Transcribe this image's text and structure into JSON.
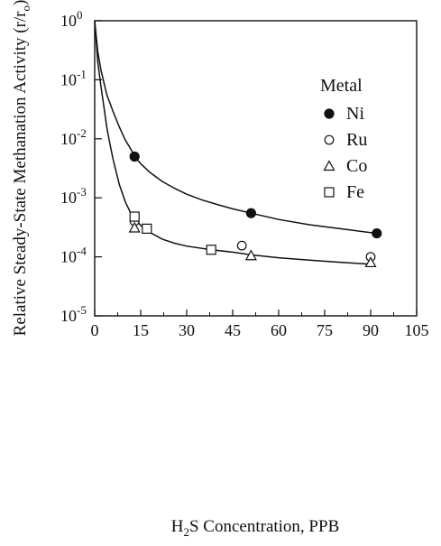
{
  "chart_data": {
    "type": "scatter",
    "title": "",
    "xlabel": "H2S Concentration, PPB",
    "xlabel_parts": {
      "pre": "H",
      "sub": "2",
      "post": "S Concentration, PPB"
    },
    "ylabel": "Relative Steady-State Methanation Activity (r/ro)",
    "ylabel_parts": {
      "pre": "Relative Steady-State Methanation Activity (r/r",
      "sub": "o",
      "post": ")"
    },
    "xlim": [
      0,
      105
    ],
    "ylim": [
      1e-05,
      1
    ],
    "yscale": "log",
    "xticks": [
      "0",
      "15",
      "30",
      "45",
      "60",
      "75",
      "90",
      "105"
    ],
    "xtick_values": [
      0,
      15,
      30,
      45,
      60,
      75,
      90,
      105
    ],
    "yticks": [
      {
        "base": "10",
        "exp": "0",
        "value": 1
      },
      {
        "base": "10",
        "exp": "-1",
        "value": 0.1
      },
      {
        "base": "10",
        "exp": "-2",
        "value": 0.01
      },
      {
        "base": "10",
        "exp": "-3",
        "value": 0.001
      },
      {
        "base": "10",
        "exp": "-4",
        "value": 0.0001
      },
      {
        "base": "10",
        "exp": "-5",
        "value": 1e-05
      }
    ],
    "grid": false,
    "legend": {
      "title": "Metal",
      "placement": "top-right"
    },
    "series": [
      {
        "name": "Ni",
        "marker": "filled-circle",
        "points": [
          [
            13,
            0.005
          ],
          [
            51,
            0.00055
          ],
          [
            92,
            0.00025
          ]
        ]
      },
      {
        "name": "Ru",
        "marker": "open-circle",
        "points": [
          [
            13,
            0.0004
          ],
          [
            48,
            0.000155
          ],
          [
            90,
            0.0001
          ]
        ]
      },
      {
        "name": "Co",
        "marker": "open-triangle",
        "points": [
          [
            13,
            0.00031
          ],
          [
            51,
            0.000105
          ],
          [
            90,
            8e-05
          ]
        ]
      },
      {
        "name": "Fe",
        "marker": "open-square",
        "points": [
          [
            13,
            0.00048
          ],
          [
            17,
            0.0003
          ],
          [
            38,
            0.000132
          ]
        ]
      }
    ],
    "curves": [
      {
        "fit_for": "Ni",
        "points": [
          [
            0,
            1
          ],
          [
            1,
            0.3
          ],
          [
            2,
            0.15
          ],
          [
            3,
            0.09
          ],
          [
            4,
            0.055
          ],
          [
            5,
            0.04
          ],
          [
            6,
            0.029
          ],
          [
            8,
            0.016
          ],
          [
            10,
            0.0095
          ],
          [
            12,
            0.0064
          ],
          [
            13,
            0.005
          ],
          [
            15,
            0.0038
          ],
          [
            18,
            0.0027
          ],
          [
            22,
            0.0019
          ],
          [
            26,
            0.00145
          ],
          [
            30,
            0.00115
          ],
          [
            35,
            0.00092
          ],
          [
            40,
            0.00077
          ],
          [
            45,
            0.00065
          ],
          [
            51,
            0.00055
          ],
          [
            60,
            0.00043
          ],
          [
            70,
            0.00035
          ],
          [
            80,
            0.0003
          ],
          [
            92,
            0.00025
          ]
        ]
      },
      {
        "fit_for": "Co/Ru/Fe",
        "points": [
          [
            0,
            1
          ],
          [
            1,
            0.2
          ],
          [
            2,
            0.08
          ],
          [
            3,
            0.035
          ],
          [
            4,
            0.015
          ],
          [
            5,
            0.008
          ],
          [
            6,
            0.0045
          ],
          [
            8,
            0.0017
          ],
          [
            10,
            0.00085
          ],
          [
            12,
            0.00052
          ],
          [
            13,
            0.00045
          ],
          [
            15,
            0.00034
          ],
          [
            18,
            0.00026
          ],
          [
            22,
            0.0002
          ],
          [
            26,
            0.00017
          ],
          [
            30,
            0.000152
          ],
          [
            38,
            0.000132
          ],
          [
            45,
            0.00012
          ],
          [
            51,
            0.000108
          ],
          [
            60,
            9.65e-05
          ],
          [
            70,
            8.8e-05
          ],
          [
            80,
            8.1e-05
          ],
          [
            90,
            7.5e-05
          ]
        ]
      }
    ]
  }
}
